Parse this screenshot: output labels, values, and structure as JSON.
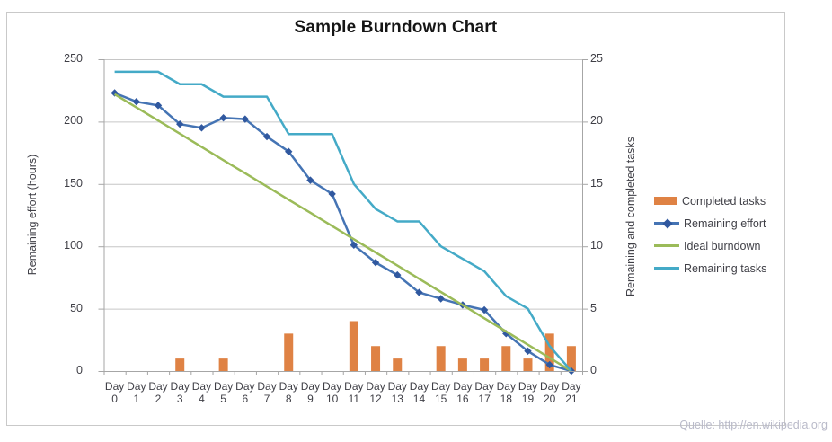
{
  "chart_data": {
    "type": "combo",
    "title": "Sample Burndown Chart",
    "categories": [
      "Day 0",
      "Day 1",
      "Day 2",
      "Day 3",
      "Day 4",
      "Day 5",
      "Day 6",
      "Day 7",
      "Day 8",
      "Day 9",
      "Day 10",
      "Day 11",
      "Day 12",
      "Day 13",
      "Day 14",
      "Day 15",
      "Day 16",
      "Day 17",
      "Day 18",
      "Day 19",
      "Day 20",
      "Day 21"
    ],
    "series": [
      {
        "name": "Completed tasks",
        "type": "bar",
        "axis": "right",
        "color": "#df8244",
        "values": [
          0,
          0,
          0,
          1,
          0,
          1,
          0,
          0,
          3,
          0,
          0,
          4,
          2,
          1,
          0,
          2,
          1,
          1,
          2,
          1,
          3,
          2
        ]
      },
      {
        "name": "Remaining effort",
        "type": "line",
        "axis": "left",
        "color": "#4574b4",
        "marker": "diamond",
        "marker_color": "#30589f",
        "values": [
          223,
          216,
          213,
          198,
          195,
          203,
          202,
          188,
          176,
          153,
          142,
          101,
          87,
          77,
          63,
          58,
          53,
          49,
          30,
          16,
          5,
          0
        ]
      },
      {
        "name": "Ideal burndown",
        "type": "line",
        "axis": "left",
        "color": "#9bbb59",
        "values": [
          222,
          211.4,
          200.9,
          190.3,
          179.7,
          169.1,
          158.6,
          148,
          137.4,
          126.9,
          116.3,
          105.7,
          95.1,
          84.6,
          74,
          63.4,
          52.9,
          42.3,
          31.7,
          21.1,
          10.6,
          0
        ]
      },
      {
        "name": "Remaining tasks",
        "type": "line",
        "axis": "right",
        "color": "#44aac7",
        "values": [
          24,
          24,
          24,
          23,
          23,
          22,
          22,
          22,
          19,
          19,
          19,
          15,
          13,
          12,
          12,
          10,
          9,
          8,
          6,
          5,
          2,
          0
        ]
      }
    ],
    "left_axis": {
      "label": "Remaining effort (hours)",
      "min": 0,
      "max": 250,
      "ticks": [
        0,
        50,
        100,
        150,
        200,
        250
      ]
    },
    "right_axis": {
      "label": "Remaining and completed tasks",
      "min": 0,
      "max": 25,
      "ticks": [
        0,
        5,
        10,
        15,
        20,
        25
      ]
    },
    "grid": true,
    "legend_position": "right",
    "legend_items": [
      "Completed tasks",
      "Remaining effort",
      "Ideal burndown",
      "Remaining tasks"
    ]
  },
  "source_note": "Quelle: http://en.wikipedia.org",
  "colors": {
    "gridline": "#c6c6c6",
    "axis_line": "#a6a6a6",
    "tick_text": "#3f3f46",
    "title_text": "#151515",
    "frame_border": "#c9c9c9",
    "source_text": "#b9bac9"
  }
}
